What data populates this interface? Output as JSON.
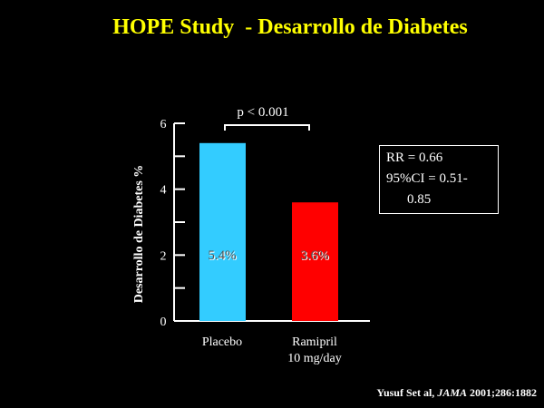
{
  "title": "HOPE Study  - Desarrollo de Diabetes",
  "pvalue": "p < 0.001",
  "rr_box": {
    "line1": "RR = 0.66",
    "line2": "95%CI = 0.51-",
    "line3": "0.85"
  },
  "source": {
    "authors": "Yusuf Set al,",
    "journal": "JAMA",
    "citation": "2001;286:1882"
  },
  "chart_data": {
    "type": "bar",
    "categories": [
      "Placebo",
      "Ramipril\n10 mg/day"
    ],
    "category_lines": [
      [
        "Placebo"
      ],
      [
        "Ramipril",
        "10 mg/day"
      ]
    ],
    "values": [
      5.4,
      3.6
    ],
    "data_labels": [
      "5.4%",
      "3.6%"
    ],
    "colors": [
      "#33ccff",
      "#ff0000"
    ],
    "ylabel": "Desarrollo de  Diabetes %",
    "xlabel": "",
    "ylim": [
      0,
      6
    ],
    "major_ticks": [
      0,
      2,
      4,
      6
    ],
    "minor_ticks": [
      1,
      3,
      5
    ],
    "grid": false
  }
}
